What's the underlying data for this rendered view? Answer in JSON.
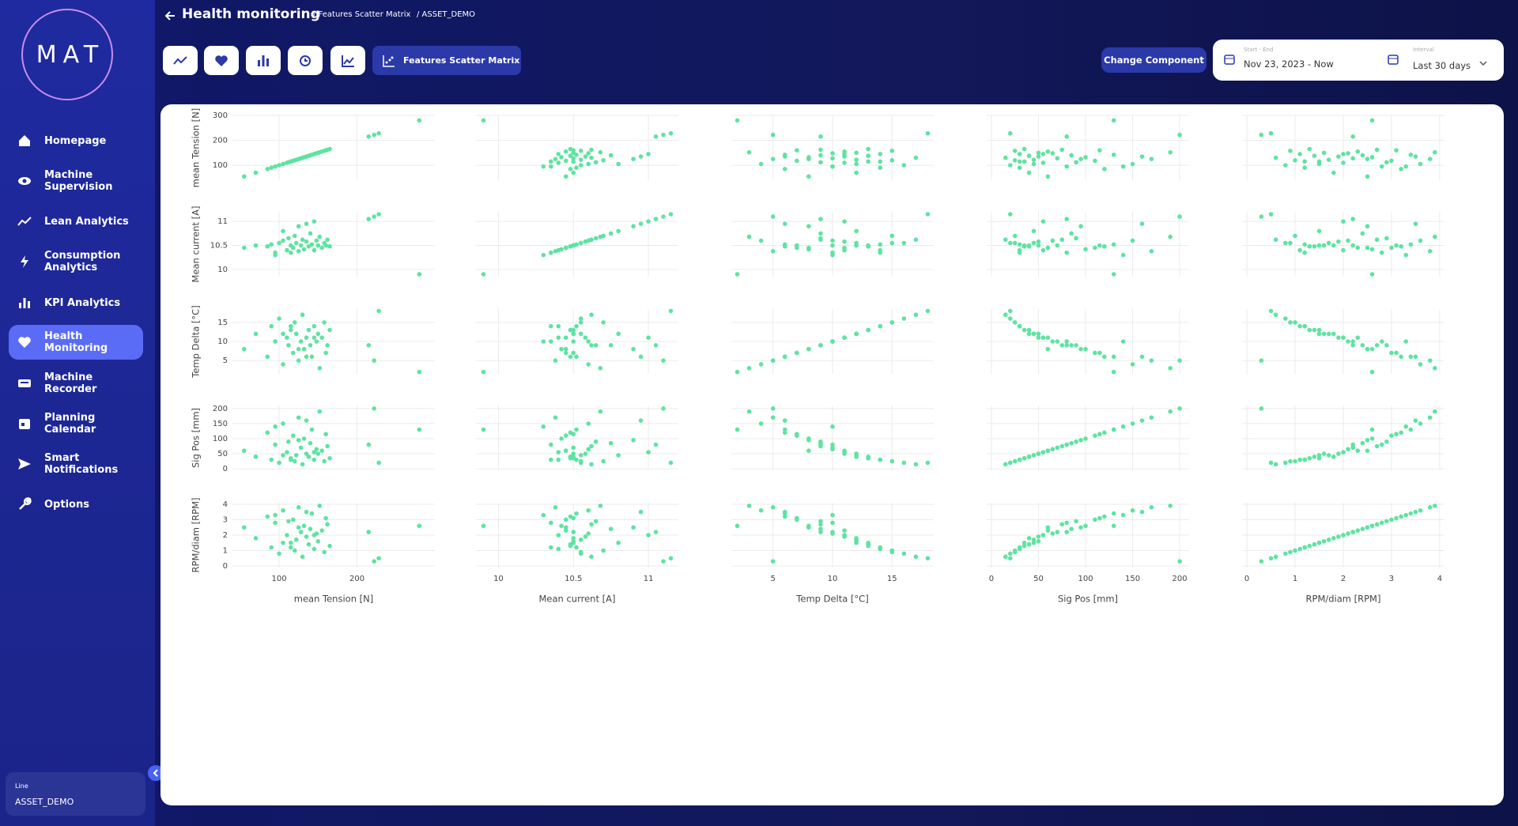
{
  "logo": "MAT",
  "header": {
    "title": "Health monitoring",
    "breadcrumb": [
      "/ Features Scatter Matrix",
      "/ ASSET_DEMO"
    ]
  },
  "nav": [
    "Homepage",
    "Machine Supervision",
    "Lean Analytics",
    "Consumption Analytics",
    "KPI Analytics",
    "Health Monitoring",
    "Machine Recorder",
    "Planning Calendar",
    "Smart Notifications",
    "Options"
  ],
  "toolbar": {
    "active_tab": "Features Scatter Matrix",
    "change_component": "Change Component"
  },
  "date_range": {
    "label": "Start - End",
    "value": "Nov 23, 2023 - Now"
  },
  "interval": {
    "label": "Interval",
    "value": "Last 30 days"
  },
  "line": {
    "label": "Line",
    "value": "ASSET_DEMO"
  },
  "chart_data": {
    "type": "scatter_matrix",
    "color": "#5fe3a1",
    "grid": true,
    "dimensions": [
      {
        "label": "mean Tension [N]",
        "xlim": [
          40,
          300
        ],
        "ylim": [
          40,
          300
        ],
        "xticks": [
          100,
          200
        ],
        "yticks": [
          100,
          200,
          300
        ],
        "values": [
          55,
          70,
          85,
          90,
          95,
          100,
          105,
          110,
          112,
          115,
          118,
          120,
          122,
          125,
          128,
          130,
          132,
          135,
          138,
          140,
          142,
          145,
          148,
          150,
          152,
          155,
          158,
          160,
          162,
          165,
          95,
          105,
          125,
          135,
          145,
          115,
          215,
          222,
          228,
          280
        ]
      },
      {
        "label": "Mean current [A]",
        "xlim": [
          9.85,
          11.2
        ],
        "ylim": [
          9.85,
          11.2
        ],
        "xticks": [
          10,
          10.5,
          11
        ],
        "yticks": [
          10,
          10.5,
          11
        ],
        "values": [
          10.45,
          10.5,
          10.48,
          10.52,
          10.35,
          10.55,
          10.6,
          10.4,
          10.65,
          10.5,
          10.45,
          10.7,
          10.55,
          10.38,
          10.5,
          10.62,
          10.42,
          10.58,
          10.48,
          10.75,
          10.52,
          10.4,
          10.6,
          10.5,
          10.68,
          10.45,
          10.55,
          10.5,
          10.62,
          10.48,
          10.3,
          10.8,
          10.9,
          10.95,
          11.0,
          10.35,
          11.05,
          11.1,
          11.15,
          9.9
        ]
      },
      {
        "label": "Temp Delta [°C]",
        "xlim": [
          1.5,
          18.5
        ],
        "ylim": [
          1.5,
          18.5
        ],
        "xticks": [
          5,
          10,
          15
        ],
        "yticks": [
          5,
          10,
          15
        ],
        "values": [
          8,
          12,
          6,
          14,
          10,
          16,
          4,
          11,
          9,
          13,
          7,
          15,
          12,
          5,
          10,
          17,
          8,
          11,
          13,
          9,
          6,
          14,
          10,
          12,
          3,
          11,
          15,
          7,
          9,
          13,
          10,
          12,
          8,
          6,
          11,
          14,
          9,
          5,
          18,
          2
        ]
      },
      {
        "label": "Sig Pos [mm]",
        "xlim": [
          -5,
          210
        ],
        "ylim": [
          -5,
          210
        ],
        "xticks": [
          0,
          50,
          100,
          150,
          200
        ],
        "yticks": [
          0,
          50,
          100,
          150,
          200
        ],
        "values": [
          60,
          40,
          120,
          30,
          80,
          20,
          150,
          55,
          90,
          35,
          110,
          25,
          45,
          170,
          70,
          15,
          100,
          50,
          40,
          85,
          130,
          30,
          65,
          50,
          190,
          60,
          25,
          115,
          75,
          35,
          140,
          45,
          95,
          160,
          55,
          30,
          80,
          200,
          20,
          130
        ]
      },
      {
        "label": "RPM/diam [RPM]",
        "xlim": [
          -0.1,
          4.1
        ],
        "ylim": [
          -0.1,
          4.1
        ],
        "xticks": [
          0,
          1,
          2,
          3,
          4
        ],
        "yticks": [
          0,
          1,
          2,
          3,
          4
        ],
        "values": [
          2.5,
          1.8,
          3.2,
          1.2,
          2.8,
          0.8,
          3.6,
          2.0,
          2.9,
          1.5,
          3.0,
          1.0,
          1.7,
          3.8,
          2.2,
          0.6,
          2.6,
          1.9,
          1.4,
          2.4,
          3.4,
          1.1,
          2.1,
          1.6,
          3.9,
          2.3,
          0.9,
          3.1,
          2.7,
          1.3,
          3.3,
          1.5,
          2.5,
          3.5,
          2.0,
          1.2,
          2.2,
          0.3,
          0.5,
          2.6
        ]
      }
    ]
  }
}
